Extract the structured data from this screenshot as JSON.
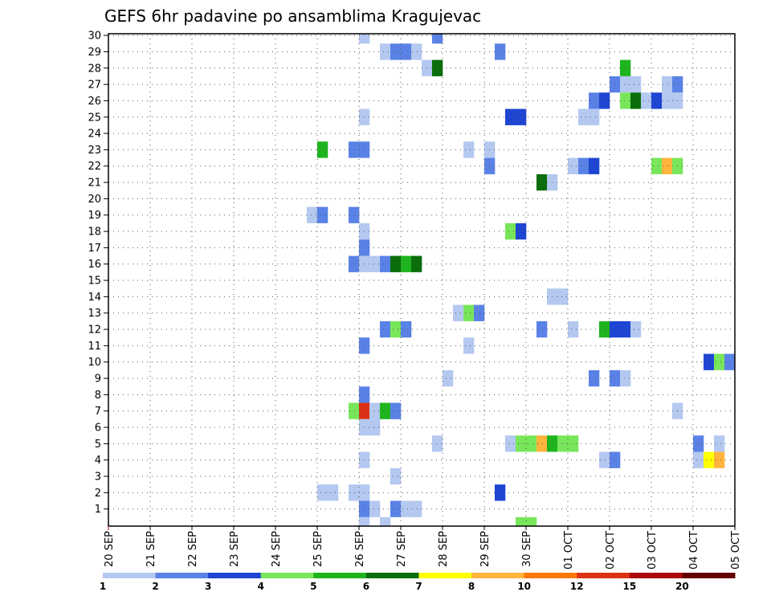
{
  "chart_data": {
    "type": "heatmap",
    "title": "GEFS 6hr padavine po ansamblima Kragujevac",
    "xlabel": "",
    "ylabel": "",
    "x_ticks": [
      "20 SEP",
      "21 SEP",
      "22 SEP",
      "23 SEP",
      "24 SEP",
      "25 SEP",
      "26 SEP",
      "27 SEP",
      "28 SEP",
      "29 SEP",
      "30 SEP",
      "01 OCT",
      "02 OCT",
      "03 OCT",
      "04 OCT",
      "05 OCT"
    ],
    "y_ticks": [
      "1",
      "2",
      "3",
      "4",
      "5",
      "6",
      "7",
      "8",
      "9",
      "10",
      "11",
      "12",
      "13",
      "14",
      "15",
      "16",
      "17",
      "18",
      "19",
      "20",
      "21",
      "22",
      "23",
      "24",
      "25",
      "26",
      "27",
      "28",
      "29",
      "30"
    ],
    "xlim": [
      0,
      60
    ],
    "ylim": [
      0,
      30
    ],
    "grid": true,
    "x_unit": "6-hour step (0 = 20 SEP 00Z)",
    "y_unit": "ensemble member",
    "value_unit": "mm / 6h",
    "legend": {
      "placement": "bottom",
      "labels": [
        "1",
        "2",
        "3",
        "4",
        "5",
        "6",
        "7",
        "8",
        "10",
        "12",
        "15",
        "20"
      ],
      "colors": [
        "#b4c8f0",
        "#5a82e6",
        "#1e46d2",
        "#78e65a",
        "#1eb41e",
        "#0a6e0a",
        "#ffff00",
        "#ffb43c",
        "#ff7800",
        "#dc3214",
        "#aa0a0a",
        "#640000"
      ]
    },
    "cells": [
      {
        "x": 24.5,
        "y": 30,
        "v": 1
      },
      {
        "x": 31.5,
        "y": 30,
        "v": 2
      },
      {
        "x": 26.5,
        "y": 29,
        "v": 1
      },
      {
        "x": 27.5,
        "y": 29,
        "v": 2
      },
      {
        "x": 28.5,
        "y": 29,
        "v": 2
      },
      {
        "x": 29.5,
        "y": 29,
        "v": 1
      },
      {
        "x": 37.5,
        "y": 29,
        "v": 2
      },
      {
        "x": 30.5,
        "y": 28,
        "v": 1
      },
      {
        "x": 31.5,
        "y": 28,
        "v": 6
      },
      {
        "x": 49.5,
        "y": 28,
        "v": 5
      },
      {
        "x": 48.5,
        "y": 27,
        "v": 2
      },
      {
        "x": 49.5,
        "y": 27,
        "v": 1
      },
      {
        "x": 50.5,
        "y": 27,
        "v": 1
      },
      {
        "x": 53.5,
        "y": 27,
        "v": 1
      },
      {
        "x": 54.5,
        "y": 27,
        "v": 2
      },
      {
        "x": 46.5,
        "y": 26,
        "v": 2
      },
      {
        "x": 47.5,
        "y": 26,
        "v": 3
      },
      {
        "x": 49.5,
        "y": 26,
        "v": 4
      },
      {
        "x": 50.5,
        "y": 26,
        "v": 6
      },
      {
        "x": 51.5,
        "y": 26,
        "v": 1
      },
      {
        "x": 52.5,
        "y": 26,
        "v": 3
      },
      {
        "x": 53.5,
        "y": 26,
        "v": 1
      },
      {
        "x": 54.5,
        "y": 26,
        "v": 1
      },
      {
        "x": 24.5,
        "y": 25,
        "v": 1
      },
      {
        "x": 38.5,
        "y": 25,
        "v": 3
      },
      {
        "x": 39.5,
        "y": 25,
        "v": 3
      },
      {
        "x": 45.5,
        "y": 25,
        "v": 1
      },
      {
        "x": 46.5,
        "y": 25,
        "v": 1
      },
      {
        "x": 20.5,
        "y": 23,
        "v": 5
      },
      {
        "x": 23.5,
        "y": 23,
        "v": 2
      },
      {
        "x": 24.5,
        "y": 23,
        "v": 2
      },
      {
        "x": 34.5,
        "y": 23,
        "v": 1
      },
      {
        "x": 36.5,
        "y": 23,
        "v": 1
      },
      {
        "x": 36.5,
        "y": 22,
        "v": 2
      },
      {
        "x": 44.5,
        "y": 22,
        "v": 1
      },
      {
        "x": 45.5,
        "y": 22,
        "v": 2
      },
      {
        "x": 46.5,
        "y": 22,
        "v": 3
      },
      {
        "x": 52.5,
        "y": 22,
        "v": 4
      },
      {
        "x": 53.5,
        "y": 22,
        "v": 9
      },
      {
        "x": 54.5,
        "y": 22,
        "v": 4
      },
      {
        "x": 41.5,
        "y": 21,
        "v": 6
      },
      {
        "x": 42.5,
        "y": 21,
        "v": 1
      },
      {
        "x": 19.5,
        "y": 19,
        "v": 1
      },
      {
        "x": 20.5,
        "y": 19,
        "v": 2
      },
      {
        "x": 23.5,
        "y": 19,
        "v": 2
      },
      {
        "x": 24.5,
        "y": 18,
        "v": 1
      },
      {
        "x": 38.5,
        "y": 18,
        "v": 4
      },
      {
        "x": 39.5,
        "y": 18,
        "v": 3
      },
      {
        "x": 24.5,
        "y": 17,
        "v": 2
      },
      {
        "x": 23.5,
        "y": 16,
        "v": 2
      },
      {
        "x": 24.5,
        "y": 16,
        "v": 1
      },
      {
        "x": 25.5,
        "y": 16,
        "v": 1
      },
      {
        "x": 26.5,
        "y": 16,
        "v": 2
      },
      {
        "x": 27.5,
        "y": 16,
        "v": 6
      },
      {
        "x": 28.5,
        "y": 16,
        "v": 5
      },
      {
        "x": 29.5,
        "y": 16,
        "v": 6
      },
      {
        "x": 42.5,
        "y": 14,
        "v": 1
      },
      {
        "x": 43.5,
        "y": 14,
        "v": 1
      },
      {
        "x": 33.5,
        "y": 13,
        "v": 1
      },
      {
        "x": 34.5,
        "y": 13,
        "v": 4
      },
      {
        "x": 35.5,
        "y": 13,
        "v": 2
      },
      {
        "x": 26.5,
        "y": 12,
        "v": 2
      },
      {
        "x": 27.5,
        "y": 12,
        "v": 4
      },
      {
        "x": 28.5,
        "y": 12,
        "v": 2
      },
      {
        "x": 41.5,
        "y": 12,
        "v": 2
      },
      {
        "x": 44.5,
        "y": 12,
        "v": 1
      },
      {
        "x": 47.5,
        "y": 12,
        "v": 5
      },
      {
        "x": 48.5,
        "y": 12,
        "v": 3
      },
      {
        "x": 49.5,
        "y": 12,
        "v": 3
      },
      {
        "x": 50.5,
        "y": 12,
        "v": 1
      },
      {
        "x": 24.5,
        "y": 11,
        "v": 2
      },
      {
        "x": 34.5,
        "y": 11,
        "v": 1
      },
      {
        "x": 57.5,
        "y": 10,
        "v": 3
      },
      {
        "x": 58.5,
        "y": 10,
        "v": 4
      },
      {
        "x": 59.5,
        "y": 10,
        "v": 2
      },
      {
        "x": 32.5,
        "y": 9,
        "v": 1
      },
      {
        "x": 46.5,
        "y": 9,
        "v": 2
      },
      {
        "x": 48.5,
        "y": 9,
        "v": 2
      },
      {
        "x": 49.5,
        "y": 9,
        "v": 1
      },
      {
        "x": 24.5,
        "y": 8,
        "v": 2
      },
      {
        "x": 23.5,
        "y": 7,
        "v": 4
      },
      {
        "x": 24.5,
        "y": 7,
        "v": 12
      },
      {
        "x": 25.5,
        "y": 7,
        "v": 1
      },
      {
        "x": 26.5,
        "y": 7,
        "v": 5
      },
      {
        "x": 27.5,
        "y": 7,
        "v": 2
      },
      {
        "x": 54.5,
        "y": 7,
        "v": 1
      },
      {
        "x": 24.5,
        "y": 6,
        "v": 1
      },
      {
        "x": 25.5,
        "y": 6,
        "v": 1
      },
      {
        "x": 31.5,
        "y": 5,
        "v": 1
      },
      {
        "x": 38.5,
        "y": 5,
        "v": 1
      },
      {
        "x": 39.5,
        "y": 5,
        "v": 4
      },
      {
        "x": 40.5,
        "y": 5,
        "v": 4
      },
      {
        "x": 41.5,
        "y": 5,
        "v": 8
      },
      {
        "x": 42.5,
        "y": 5,
        "v": 5
      },
      {
        "x": 43.5,
        "y": 5,
        "v": 4
      },
      {
        "x": 44.5,
        "y": 5,
        "v": 4
      },
      {
        "x": 56.5,
        "y": 5,
        "v": 2
      },
      {
        "x": 58.5,
        "y": 5,
        "v": 1
      },
      {
        "x": 24.5,
        "y": 4,
        "v": 1
      },
      {
        "x": 47.5,
        "y": 4,
        "v": 1
      },
      {
        "x": 48.5,
        "y": 4,
        "v": 2
      },
      {
        "x": 56.5,
        "y": 4,
        "v": 1
      },
      {
        "x": 57.5,
        "y": 4,
        "v": 7
      },
      {
        "x": 58.5,
        "y": 4,
        "v": 8
      },
      {
        "x": 27.5,
        "y": 3,
        "v": 1
      },
      {
        "x": 20.5,
        "y": 2,
        "v": 1
      },
      {
        "x": 21.5,
        "y": 2,
        "v": 1
      },
      {
        "x": 23.5,
        "y": 2,
        "v": 1
      },
      {
        "x": 24.5,
        "y": 2,
        "v": 1
      },
      {
        "x": 37.5,
        "y": 2,
        "v": 3
      },
      {
        "x": 24.5,
        "y": 1,
        "v": 2
      },
      {
        "x": 25.5,
        "y": 1,
        "v": 1
      },
      {
        "x": 27.5,
        "y": 1,
        "v": 2
      },
      {
        "x": 28.5,
        "y": 1,
        "v": 1
      },
      {
        "x": 29.5,
        "y": 1,
        "v": 1
      },
      {
        "x": 24.5,
        "y": 0,
        "v": 1
      },
      {
        "x": 26.5,
        "y": 0,
        "v": 1
      },
      {
        "x": 39.5,
        "y": 0,
        "v": 4
      },
      {
        "x": 40.5,
        "y": 0,
        "v": 4
      }
    ]
  }
}
